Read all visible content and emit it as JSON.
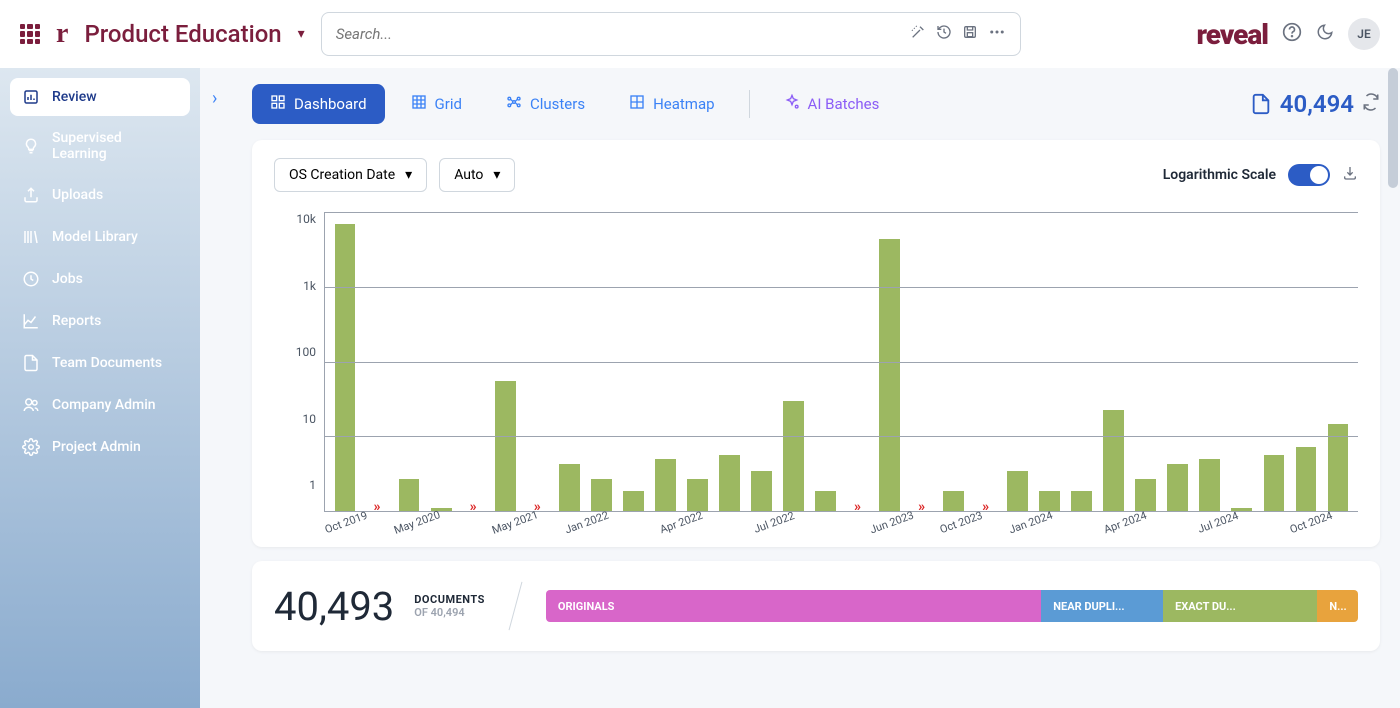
{
  "header": {
    "project_name": "Product Education",
    "search_placeholder": "Search...",
    "brand": "reveal",
    "avatar_initials": "JE"
  },
  "sidebar": {
    "items": [
      {
        "label": "Review",
        "icon": "bar-chart",
        "active": true
      },
      {
        "label": "Supervised Learning",
        "icon": "lightbulb"
      },
      {
        "label": "Uploads",
        "icon": "upload"
      },
      {
        "label": "Model Library",
        "icon": "library"
      },
      {
        "label": "Jobs",
        "icon": "clock"
      },
      {
        "label": "Reports",
        "icon": "line-chart"
      },
      {
        "label": "Team Documents",
        "icon": "document"
      },
      {
        "label": "Company Admin",
        "icon": "users"
      },
      {
        "label": "Project Admin",
        "icon": "gear"
      }
    ]
  },
  "tabs": [
    {
      "label": "Dashboard",
      "icon": "dashboard",
      "active": true
    },
    {
      "label": "Grid",
      "icon": "grid"
    },
    {
      "label": "Clusters",
      "icon": "clusters"
    },
    {
      "label": "Heatmap",
      "icon": "heatmap"
    },
    {
      "label": "AI Batches",
      "icon": "ai",
      "ai": true
    }
  ],
  "doc_total": "40,494",
  "chart": {
    "type": "bar",
    "field_selector": "OS Creation Date",
    "interval_selector": "Auto",
    "log_scale_label": "Logarithmic Scale",
    "log_scale_on": true,
    "bar_color": "#9cb861",
    "grid_color": "#9ca3af",
    "background_color": "#ffffff",
    "y_scale": "log",
    "y_ticks": [
      "10k",
      "1k",
      "100",
      "10",
      "1"
    ],
    "slots": [
      {
        "type": "bar",
        "value": 20000,
        "label": "Oct 2019"
      },
      {
        "type": "gap"
      },
      {
        "type": "bar",
        "value": 3,
        "label": "May 2020"
      },
      {
        "type": "bar",
        "value": 1.1
      },
      {
        "type": "gap"
      },
      {
        "type": "bar",
        "value": 90,
        "label": "May 2021"
      },
      {
        "type": "gap"
      },
      {
        "type": "bar",
        "value": 5,
        "label": "Jan 2022"
      },
      {
        "type": "bar",
        "value": 3
      },
      {
        "type": "bar",
        "value": 2
      },
      {
        "type": "bar",
        "value": 6,
        "label": "Apr 2022"
      },
      {
        "type": "bar",
        "value": 3
      },
      {
        "type": "bar",
        "value": 7
      },
      {
        "type": "bar",
        "value": 4,
        "label": "Jul 2022"
      },
      {
        "type": "bar",
        "value": 45
      },
      {
        "type": "bar",
        "value": 2
      },
      {
        "type": "gap"
      },
      {
        "type": "bar",
        "value": 12000,
        "label": "Jun 2023"
      },
      {
        "type": "gap"
      },
      {
        "type": "bar",
        "value": 2,
        "label": "Oct 2023"
      },
      {
        "type": "gap"
      },
      {
        "type": "bar",
        "value": 4,
        "label": "Jan 2024"
      },
      {
        "type": "bar",
        "value": 2
      },
      {
        "type": "bar",
        "value": 2
      },
      {
        "type": "bar",
        "value": 32,
        "label": "Apr 2024"
      },
      {
        "type": "bar",
        "value": 3
      },
      {
        "type": "bar",
        "value": 5
      },
      {
        "type": "bar",
        "value": 6,
        "label": "Jul 2024"
      },
      {
        "type": "bar",
        "value": 1.1
      },
      {
        "type": "bar",
        "value": 7
      },
      {
        "type": "bar",
        "value": 9,
        "label": "Oct 2024"
      },
      {
        "type": "bar",
        "value": 20
      }
    ]
  },
  "summary": {
    "big_count": "40,493",
    "label": "DOCUMENTS",
    "sub": "OF 40,494",
    "segments": [
      {
        "label": "ORIGINALS",
        "color": "#d866c9",
        "width": 61
      },
      {
        "label": "NEAR DUPLI...",
        "color": "#5b9bd5",
        "width": 15
      },
      {
        "label": "EXACT DU...",
        "color": "#9cb861",
        "width": 19
      },
      {
        "label": "N...",
        "color": "#e8a33d",
        "width": 5
      }
    ]
  }
}
